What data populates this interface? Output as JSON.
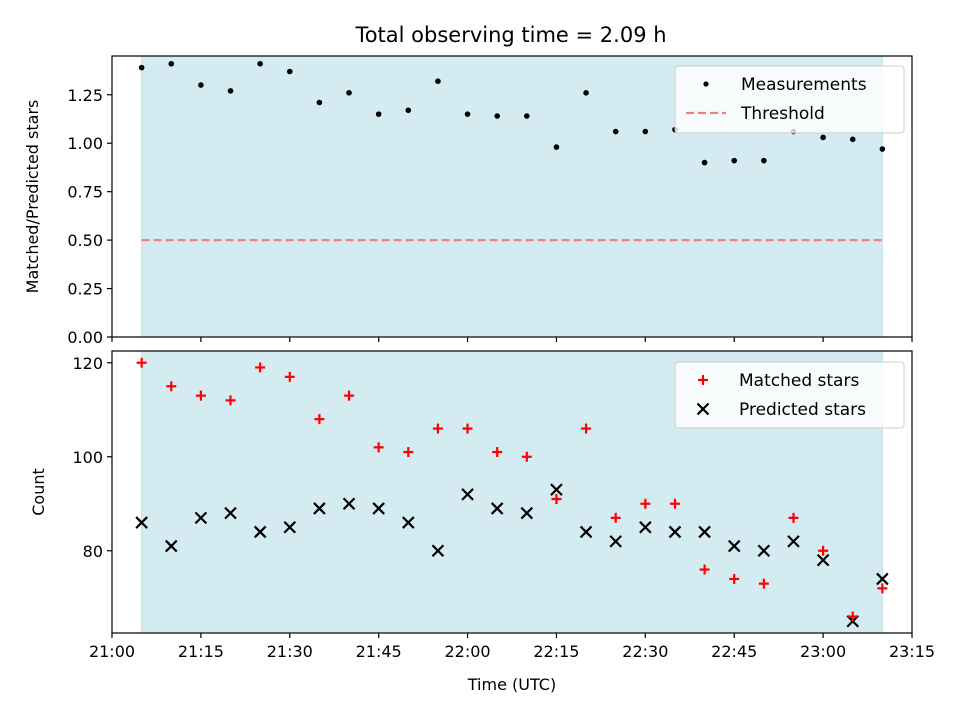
{
  "chart_data": [
    {
      "panel": "top",
      "type": "scatter",
      "title": "Total observing time = 2.09 h",
      "xlabel": "",
      "ylabel": "Matched/Predicted stars",
      "xlim": [
        "21:00",
        "23:15"
      ],
      "ylim": [
        0,
        1.45
      ],
      "yticks": [
        0.0,
        0.25,
        0.5,
        0.75,
        1.0,
        1.25
      ],
      "ytick_labels": [
        "0.00",
        "0.25",
        "0.50",
        "0.75",
        "1.00",
        "1.25"
      ],
      "shaded_span": [
        "21:05",
        "23:10"
      ],
      "shaded_color": "#d4ebf1",
      "grid": false,
      "legend_placement": "top-right",
      "series": [
        {
          "name": "Measurements",
          "marker": "dot",
          "color": "#000000",
          "x": [
            "21:05",
            "21:10",
            "21:15",
            "21:20",
            "21:25",
            "21:30",
            "21:35",
            "21:40",
            "21:45",
            "21:50",
            "21:55",
            "22:00",
            "22:05",
            "22:10",
            "22:15",
            "22:20",
            "22:25",
            "22:30",
            "22:35",
            "22:40",
            "22:45",
            "22:50",
            "22:55",
            "23:00",
            "23:05",
            "23:10"
          ],
          "values": [
            1.39,
            1.41,
            1.3,
            1.27,
            1.41,
            1.37,
            1.21,
            1.26,
            1.15,
            1.17,
            1.32,
            1.15,
            1.14,
            1.14,
            0.98,
            1.26,
            1.06,
            1.06,
            1.07,
            0.9,
            0.91,
            0.91,
            1.06,
            1.03,
            1.02,
            0.97
          ]
        },
        {
          "name": "Threshold",
          "marker": "dashed-line",
          "color": "#f08080",
          "x": [
            "21:05",
            "23:10"
          ],
          "values": [
            0.5,
            0.5
          ]
        }
      ]
    },
    {
      "panel": "bottom",
      "type": "scatter",
      "title": "",
      "xlabel": "Time (UTC)",
      "ylabel": "Count",
      "xlim": [
        "21:00",
        "23:15"
      ],
      "ylim": [
        62.5,
        122.5
      ],
      "yticks": [
        80,
        100,
        120
      ],
      "ytick_labels": [
        "80",
        "100",
        "120"
      ],
      "xticks": [
        "21:00",
        "21:15",
        "21:30",
        "21:45",
        "22:00",
        "22:15",
        "22:30",
        "22:45",
        "23:00",
        "23:15"
      ],
      "shaded_span": [
        "21:05",
        "23:10"
      ],
      "shaded_color": "#d4ebf1",
      "grid": false,
      "legend_placement": "top-right",
      "series": [
        {
          "name": "Matched stars",
          "marker": "plus",
          "color": "#ff0000",
          "x": [
            "21:05",
            "21:10",
            "21:15",
            "21:20",
            "21:25",
            "21:30",
            "21:35",
            "21:40",
            "21:45",
            "21:50",
            "21:55",
            "22:00",
            "22:05",
            "22:10",
            "22:15",
            "22:20",
            "22:25",
            "22:30",
            "22:35",
            "22:40",
            "22:45",
            "22:50",
            "22:55",
            "23:00",
            "23:05",
            "23:10"
          ],
          "values": [
            120,
            115,
            113,
            112,
            119,
            117,
            108,
            113,
            102,
            101,
            106,
            106,
            101,
            100,
            91,
            106,
            87,
            90,
            90,
            76,
            74,
            73,
            87,
            80,
            66,
            72
          ]
        },
        {
          "name": "Predicted stars",
          "marker": "x",
          "color": "#000000",
          "x": [
            "21:05",
            "21:10",
            "21:15",
            "21:20",
            "21:25",
            "21:30",
            "21:35",
            "21:40",
            "21:45",
            "21:50",
            "21:55",
            "22:00",
            "22:05",
            "22:10",
            "22:15",
            "22:20",
            "22:25",
            "22:30",
            "22:35",
            "22:40",
            "22:45",
            "22:50",
            "22:55",
            "23:00",
            "23:05",
            "23:10"
          ],
          "values": [
            86,
            81,
            87,
            88,
            84,
            85,
            89,
            90,
            89,
            86,
            80,
            92,
            89,
            88,
            93,
            84,
            82,
            85,
            84,
            84,
            81,
            80,
            82,
            78,
            65,
            74
          ]
        }
      ]
    }
  ]
}
